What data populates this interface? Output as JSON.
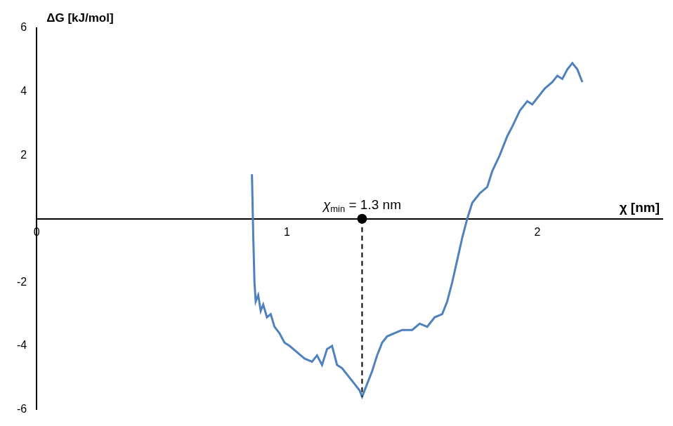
{
  "chart_data": {
    "type": "line",
    "y_axis_label": "ΔG [kJ/mol]",
    "x_axis_label": "χ [nm]",
    "annotation": {
      "symbol": "χ",
      "subscript": "min",
      "text": " = 1.3 nm",
      "x": 1.3,
      "y": -5.6
    },
    "x": [
      0.86,
      0.865,
      0.87,
      0.875,
      0.885,
      0.895,
      0.905,
      0.92,
      0.935,
      0.95,
      0.97,
      0.99,
      1.01,
      1.04,
      1.07,
      1.1,
      1.12,
      1.14,
      1.16,
      1.18,
      1.2,
      1.22,
      1.25,
      1.27,
      1.29,
      1.3,
      1.32,
      1.34,
      1.36,
      1.38,
      1.4,
      1.43,
      1.46,
      1.5,
      1.53,
      1.56,
      1.59,
      1.62,
      1.64,
      1.66,
      1.68,
      1.7,
      1.72,
      1.74,
      1.77,
      1.8,
      1.82,
      1.85,
      1.88,
      1.9,
      1.93,
      1.96,
      1.98,
      2.0,
      2.03,
      2.06,
      2.08,
      2.1,
      2.12,
      2.14,
      2.16,
      2.18
    ],
    "values": [
      1.4,
      -0.5,
      -2.0,
      -2.6,
      -2.4,
      -2.9,
      -2.7,
      -3.1,
      -3.0,
      -3.4,
      -3.6,
      -3.9,
      -4.0,
      -4.2,
      -4.4,
      -4.5,
      -4.3,
      -4.6,
      -4.1,
      -4.0,
      -4.6,
      -4.7,
      -5.0,
      -5.2,
      -5.4,
      -5.6,
      -5.2,
      -4.8,
      -4.3,
      -3.9,
      -3.7,
      -3.6,
      -3.5,
      -3.5,
      -3.3,
      -3.4,
      -3.1,
      -3.0,
      -2.6,
      -2.0,
      -1.3,
      -0.6,
      0.0,
      0.5,
      0.8,
      1.0,
      1.5,
      2.0,
      2.6,
      2.9,
      3.4,
      3.7,
      3.6,
      3.8,
      4.1,
      4.3,
      4.5,
      4.4,
      4.7,
      4.9,
      4.7,
      4.3
    ],
    "color": "#4f81bd",
    "xlim": [
      0,
      2.5
    ],
    "ylim": [
      -6,
      6
    ],
    "xticks": [
      0,
      1,
      2
    ],
    "yticks": [
      -6,
      -4,
      -2,
      2,
      4,
      6
    ],
    "grid": false
  }
}
